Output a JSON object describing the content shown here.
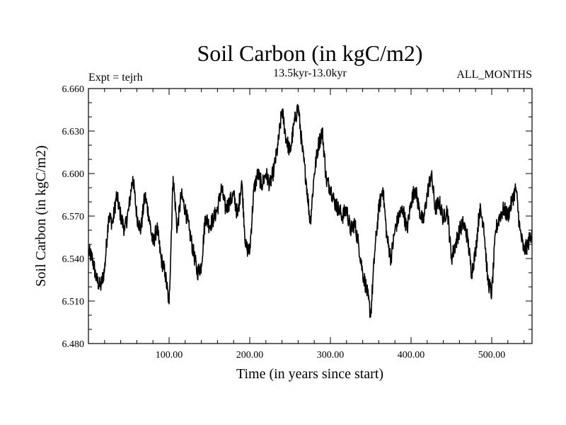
{
  "chart_data": {
    "type": "line",
    "title": "Soil Carbon (in kgC/m2)",
    "subtitle": "13.5kyr-13.0kyr",
    "left_note": "Expt = tejrh",
    "right_note": "ALL_MONTHS",
    "xlabel": "Time (in years since start)",
    "ylabel": "Soil Carbon (in kgC/m2)",
    "xlim": [
      0,
      550
    ],
    "ylim": [
      6.48,
      6.66
    ],
    "x_ticks": [
      100,
      200,
      300,
      400,
      500
    ],
    "x_tick_labels": [
      "100.00",
      "200.00",
      "300.00",
      "400.00",
      "500.00"
    ],
    "y_ticks": [
      6.48,
      6.51,
      6.54,
      6.57,
      6.6,
      6.63,
      6.66
    ],
    "y_tick_labels": [
      "6.480",
      "6.510",
      "6.540",
      "6.570",
      "6.600",
      "6.630",
      "6.660"
    ],
    "series": [
      {
        "name": "Soil Carbon",
        "color": "#000000",
        "x": [
          0,
          5,
          10,
          15,
          20,
          25,
          30,
          35,
          40,
          45,
          50,
          55,
          60,
          65,
          70,
          75,
          80,
          85,
          90,
          95,
          100,
          105,
          110,
          115,
          120,
          125,
          130,
          135,
          140,
          145,
          150,
          155,
          160,
          165,
          170,
          175,
          180,
          185,
          190,
          195,
          200,
          205,
          210,
          215,
          220,
          225,
          230,
          235,
          240,
          245,
          250,
          255,
          260,
          265,
          270,
          275,
          280,
          285,
          290,
          295,
          300,
          305,
          310,
          315,
          320,
          325,
          330,
          335,
          340,
          345,
          350,
          355,
          360,
          365,
          370,
          375,
          380,
          385,
          390,
          395,
          400,
          405,
          410,
          415,
          420,
          425,
          430,
          435,
          440,
          445,
          450,
          455,
          460,
          465,
          470,
          475,
          480,
          485,
          490,
          495,
          500,
          505,
          510,
          515,
          520,
          525,
          530,
          535,
          540,
          545,
          550
        ],
        "values": [
          6.545,
          6.54,
          6.525,
          6.52,
          6.532,
          6.57,
          6.565,
          6.585,
          6.57,
          6.56,
          6.575,
          6.598,
          6.57,
          6.56,
          6.585,
          6.57,
          6.55,
          6.562,
          6.54,
          6.53,
          6.508,
          6.598,
          6.56,
          6.585,
          6.575,
          6.56,
          6.545,
          6.53,
          6.535,
          6.57,
          6.563,
          6.568,
          6.575,
          6.59,
          6.575,
          6.58,
          6.585,
          6.57,
          6.595,
          6.548,
          6.545,
          6.588,
          6.6,
          6.592,
          6.6,
          6.592,
          6.603,
          6.62,
          6.645,
          6.625,
          6.615,
          6.635,
          6.648,
          6.618,
          6.595,
          6.565,
          6.6,
          6.62,
          6.63,
          6.595,
          6.59,
          6.58,
          6.575,
          6.57,
          6.575,
          6.56,
          6.565,
          6.55,
          6.53,
          6.518,
          6.5,
          6.545,
          6.575,
          6.59,
          6.555,
          6.54,
          6.56,
          6.57,
          6.575,
          6.56,
          6.58,
          6.59,
          6.575,
          6.565,
          6.585,
          6.6,
          6.575,
          6.58,
          6.568,
          6.575,
          6.54,
          6.55,
          6.56,
          6.565,
          6.555,
          6.53,
          6.545,
          6.575,
          6.565,
          6.525,
          6.515,
          6.56,
          6.57,
          6.575,
          6.57,
          6.58,
          6.59,
          6.56,
          6.545,
          6.55,
          6.56
        ]
      }
    ]
  }
}
